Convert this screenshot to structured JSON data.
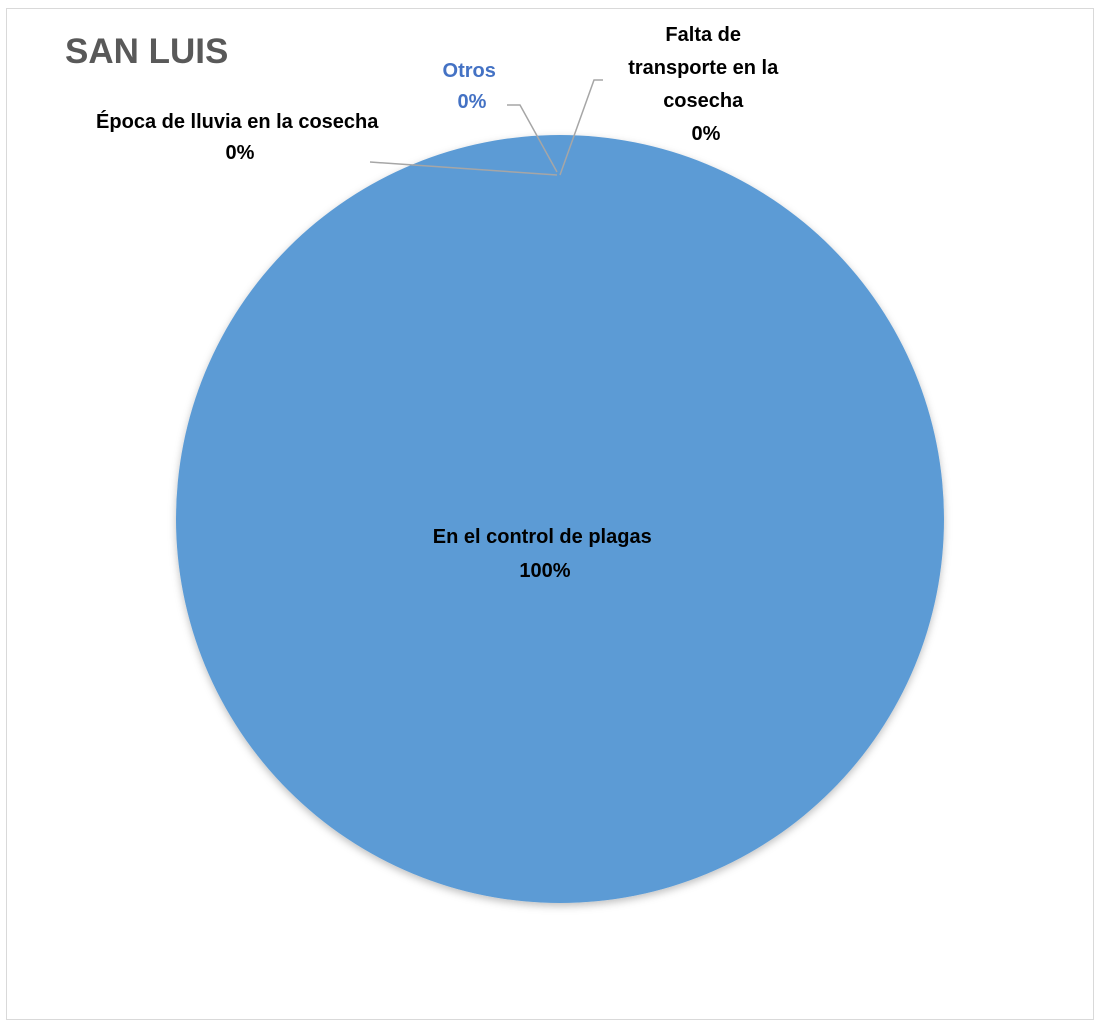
{
  "chart_data": {
    "type": "pie",
    "title": "SAN LUIS",
    "legend": "none",
    "categories": [
      "En el control de plagas",
      "Época de lluvia en la cosecha",
      "Otros",
      "Falta de transporte en la cosecha"
    ],
    "values": [
      100,
      0,
      0,
      0
    ],
    "data_labels": [
      {
        "lines": [
          "En el control de plagas",
          "100%"
        ]
      },
      {
        "lines": [
          "Época de lluvia en la cosecha",
          "0%"
        ]
      },
      {
        "lines": [
          "Otros",
          "0%"
        ]
      },
      {
        "lines": [
          "Falta de",
          "transporte en la",
          "cosecha",
          "0%"
        ]
      }
    ],
    "colors": {
      "slice_main": "#5b9bd5",
      "slice_otros": "#5b9bd5",
      "label_dark": "#000000",
      "label_otros": "#4472c4",
      "leader_line": "#a6a6a6"
    }
  }
}
